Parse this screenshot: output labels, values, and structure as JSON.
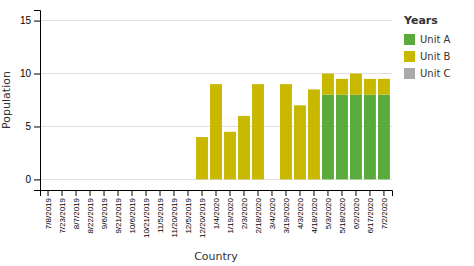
{
  "chart_data": {
    "type": "bar",
    "stacked": true,
    "xlabel": "Country",
    "ylabel": "Population",
    "legend_title": "Years",
    "legend": "right",
    "grid": true,
    "categories": [
      "7/8/2019",
      "7/23/2019",
      "8/7/2019",
      "8/22/2019",
      "9/6/2019",
      "9/21/2019",
      "10/6/2019",
      "10/21/2019",
      "11/5/2019",
      "11/20/2019",
      "12/5/2019",
      "12/20/2019",
      "1/4/2020",
      "1/19/2020",
      "2/3/2020",
      "2/18/2020",
      "3/4/2020",
      "3/19/2020",
      "4/3/2020",
      "4/18/2020",
      "5/3/2020",
      "5/18/2020",
      "6/2/2020",
      "6/17/2020",
      "7/2/2020"
    ],
    "series": [
      {
        "name": "Unit A",
        "color": "#5aaa3c",
        "values": [
          0,
          0,
          0,
          0,
          0,
          0,
          0,
          0,
          0,
          0,
          0,
          0,
          0,
          0,
          0,
          0,
          0,
          0,
          0,
          0,
          8,
          8,
          8,
          8,
          8
        ]
      },
      {
        "name": "Unit B",
        "color": "#c8b800",
        "values": [
          0,
          0,
          0,
          0,
          0,
          0,
          0,
          0,
          0,
          0,
          0,
          4,
          9,
          4.5,
          6,
          9,
          0,
          9,
          7,
          8.5,
          2,
          1.5,
          2,
          1.5,
          1.5
        ]
      },
      {
        "name": "Unit C",
        "color": "#aaaaaa",
        "values": [
          0,
          0,
          0,
          0,
          0,
          0,
          0,
          0,
          0,
          0,
          0,
          0,
          0,
          0,
          0,
          0,
          0,
          0,
          0,
          0,
          0,
          0,
          0,
          0,
          0
        ]
      }
    ],
    "ylim": [
      -1,
      16
    ],
    "yticks": [
      0,
      5,
      10,
      15
    ]
  }
}
